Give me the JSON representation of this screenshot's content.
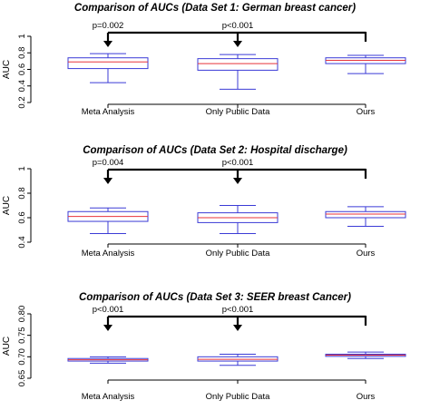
{
  "chart_data": [
    {
      "type": "box",
      "title": "Comparison of AUCs (Data Set 1: German breast cancer)",
      "ylabel": "AUC",
      "xlabel": "",
      "categories": [
        "Meta Analysis",
        "Only Public Data",
        "Ours"
      ],
      "yticks": [
        "0.2",
        "0.4",
        "0.6",
        "0.8",
        "1"
      ],
      "ylim": [
        0.2,
        1.0
      ],
      "boxes": [
        {
          "min": 0.44,
          "q1": 0.61,
          "median": 0.69,
          "q3": 0.74,
          "max": 0.79
        },
        {
          "min": 0.36,
          "q1": 0.59,
          "median": 0.67,
          "q3": 0.73,
          "max": 0.78
        },
        {
          "min": 0.55,
          "q1": 0.67,
          "median": 0.71,
          "q3": 0.74,
          "max": 0.77
        }
      ],
      "comparisons": [
        {
          "from": "Ours",
          "to": "Meta Analysis",
          "label": "p=0.002"
        },
        {
          "from": "Ours",
          "to": "Only Public Data",
          "label": "p<0.001"
        }
      ],
      "grid": false,
      "box_color": "#3b3bd6",
      "median_color": "#e8333a"
    },
    {
      "type": "box",
      "title": "Comparison of AUCs (Data Set 2: Hospital discharge)",
      "ylabel": "AUC",
      "xlabel": "",
      "categories": [
        "Meta Analysis",
        "Only Public Data",
        "Ours"
      ],
      "yticks": [
        "0.4",
        "0.6",
        "0.8",
        "1"
      ],
      "ylim": [
        0.4,
        1.0
      ],
      "boxes": [
        {
          "min": 0.47,
          "q1": 0.57,
          "median": 0.61,
          "q3": 0.65,
          "max": 0.68
        },
        {
          "min": 0.47,
          "q1": 0.56,
          "median": 0.6,
          "q3": 0.64,
          "max": 0.7
        },
        {
          "min": 0.53,
          "q1": 0.6,
          "median": 0.63,
          "q3": 0.65,
          "max": 0.69
        }
      ],
      "comparisons": [
        {
          "from": "Ours",
          "to": "Meta Analysis",
          "label": "p=0.004"
        },
        {
          "from": "Ours",
          "to": "Only Public Data",
          "label": "p<0.001"
        }
      ],
      "grid": false,
      "box_color": "#3b3bd6",
      "median_color": "#e8333a"
    },
    {
      "type": "box",
      "title": "Comparison of AUCs (Data Set 3: SEER breast Cancer)",
      "ylabel": "AUC",
      "xlabel": "",
      "categories": [
        "Meta Analysis",
        "Only Public Data",
        "Ours"
      ],
      "yticks": [
        "0.65",
        "0.70",
        "0.75",
        "0.80"
      ],
      "ylim": [
        0.65,
        0.8
      ],
      "boxes": [
        {
          "min": 0.685,
          "q1": 0.69,
          "median": 0.693,
          "q3": 0.696,
          "max": 0.7
        },
        {
          "min": 0.68,
          "q1": 0.69,
          "median": 0.694,
          "q3": 0.7,
          "max": 0.706
        },
        {
          "min": 0.696,
          "q1": 0.701,
          "median": 0.704,
          "q3": 0.706,
          "max": 0.711
        }
      ],
      "comparisons": [
        {
          "from": "Ours",
          "to": "Meta Analysis",
          "label": "p<0.001"
        },
        {
          "from": "Ours",
          "to": "Only Public Data",
          "label": "p<0.001"
        }
      ],
      "grid": false,
      "box_color": "#3b3bd6",
      "median_color": "#e8333a"
    }
  ]
}
